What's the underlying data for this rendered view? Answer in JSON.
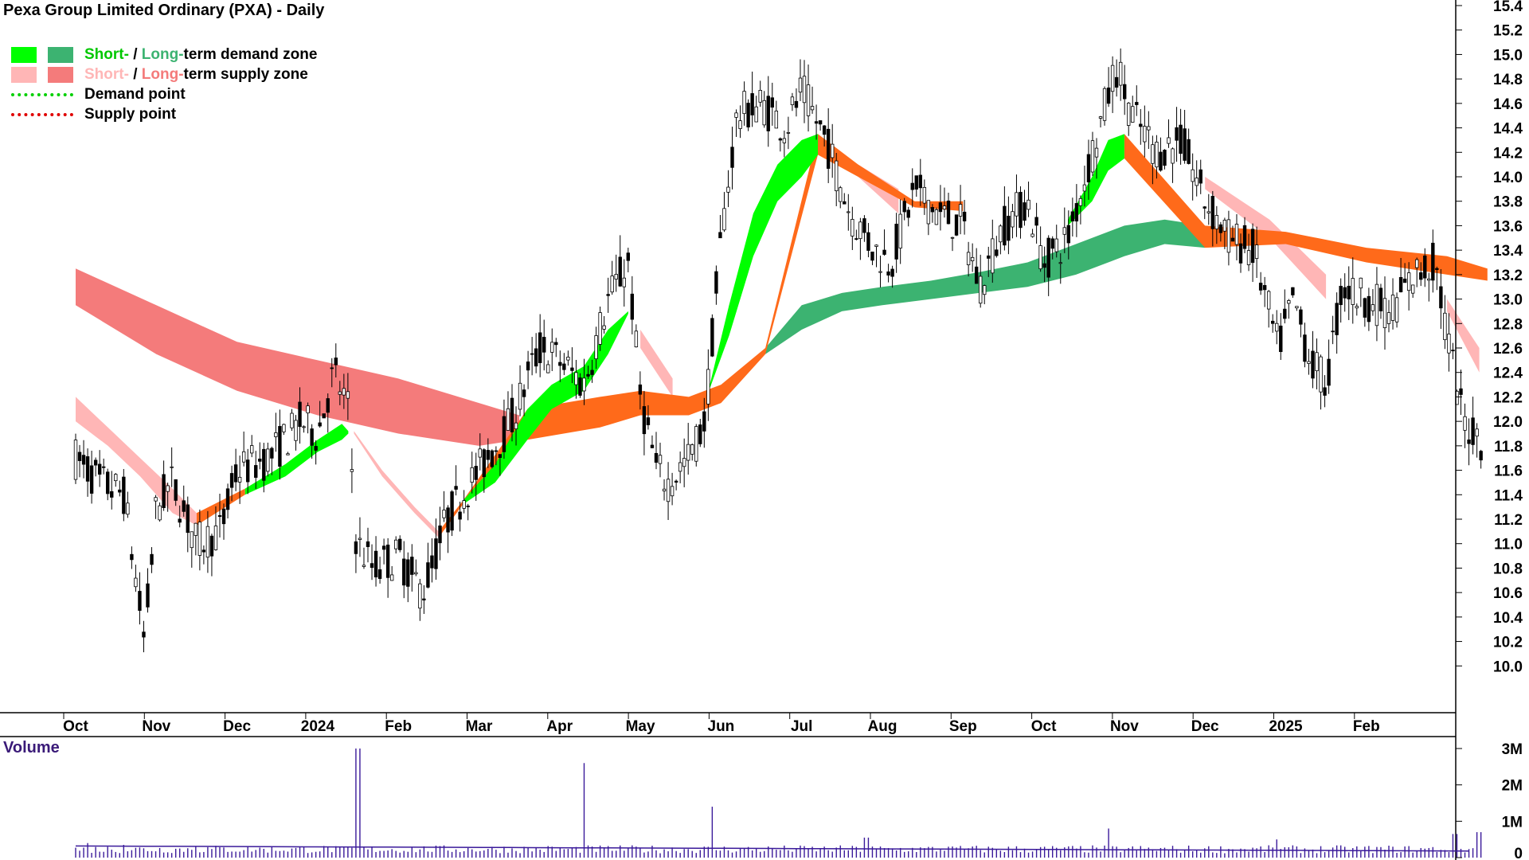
{
  "title": "Pexa Group Limited Ordinary (PXA) - Daily",
  "legend": {
    "demand": {
      "short": "Short-",
      "sep": " / ",
      "long": "Long-",
      "rest": "term demand zone"
    },
    "supply": {
      "short": "Short-",
      "sep": " / ",
      "long": "Long-",
      "rest": "term supply zone"
    },
    "demand_point": "Demand point",
    "supply_point": "Supply point"
  },
  "volume_label": "Volume",
  "colors": {
    "short_demand": "#00ff00",
    "long_demand": "#3cb371",
    "short_supply": "#ffb6b6",
    "long_supply": "#f47b7b",
    "crossover": "#ff6a1a",
    "demand_point": "#00d000",
    "supply_point": "#e00000",
    "candles": "#000000",
    "volume": "#3a1a9a"
  },
  "chart_data": {
    "type": "candlestick",
    "title": "Pexa Group Limited Ordinary (PXA) - Daily",
    "y_ticks": [
      "15.4",
      "15.2",
      "15.0",
      "14.8",
      "14.6",
      "14.4",
      "14.2",
      "14.0",
      "13.8",
      "13.6",
      "13.4",
      "13.2",
      "13.0",
      "12.8",
      "12.6",
      "12.4",
      "12.2",
      "12.0",
      "11.8",
      "11.6",
      "11.4",
      "11.2",
      "11.0",
      "10.8",
      "10.6",
      "10.4",
      "10.2",
      "10.0"
    ],
    "ylim": [
      9.8,
      15.4
    ],
    "x_ticks": [
      "Oct",
      "Nov",
      "Dec",
      "2024",
      "Feb",
      "Mar",
      "Apr",
      "May",
      "Jun",
      "Jul",
      "Aug",
      "Sep",
      "Oct",
      "Nov",
      "Dec",
      "2025",
      "Feb"
    ],
    "volume_ticks": [
      "3M",
      "2M",
      "1M",
      "0"
    ],
    "price_path": [
      {
        "m": 0.0,
        "p": 11.7
      },
      {
        "m": 0.3,
        "p": 11.5
      },
      {
        "m": 0.6,
        "p": 11.4
      },
      {
        "m": 0.85,
        "p": 10.2
      },
      {
        "m": 1.0,
        "p": 11.3
      },
      {
        "m": 1.2,
        "p": 11.5
      },
      {
        "m": 1.5,
        "p": 11.0
      },
      {
        "m": 1.8,
        "p": 11.1
      },
      {
        "m": 2.0,
        "p": 11.6
      },
      {
        "m": 2.4,
        "p": 11.7
      },
      {
        "m": 2.8,
        "p": 12.0
      },
      {
        "m": 3.0,
        "p": 11.9
      },
      {
        "m": 3.2,
        "p": 12.4
      },
      {
        "m": 3.38,
        "p": 12.1
      },
      {
        "m": 3.48,
        "p": 11.0
      },
      {
        "m": 3.7,
        "p": 10.8
      },
      {
        "m": 4.0,
        "p": 10.9
      },
      {
        "m": 4.3,
        "p": 10.6
      },
      {
        "m": 4.6,
        "p": 11.2
      },
      {
        "m": 5.0,
        "p": 11.6
      },
      {
        "m": 5.4,
        "p": 12.0
      },
      {
        "m": 5.75,
        "p": 12.6
      },
      {
        "m": 6.0,
        "p": 12.5
      },
      {
        "m": 6.3,
        "p": 12.3
      },
      {
        "m": 6.6,
        "p": 13.0
      },
      {
        "m": 6.85,
        "p": 13.3
      },
      {
        "m": 7.0,
        "p": 12.2
      },
      {
        "m": 7.2,
        "p": 11.6
      },
      {
        "m": 7.35,
        "p": 11.5
      },
      {
        "m": 7.6,
        "p": 11.7
      },
      {
        "m": 7.8,
        "p": 12.0
      },
      {
        "m": 8.0,
        "p": 13.5
      },
      {
        "m": 8.2,
        "p": 14.5
      },
      {
        "m": 8.5,
        "p": 14.6
      },
      {
        "m": 8.8,
        "p": 14.4
      },
      {
        "m": 9.0,
        "p": 14.7
      },
      {
        "m": 9.3,
        "p": 14.3
      },
      {
        "m": 9.6,
        "p": 13.7
      },
      {
        "m": 9.9,
        "p": 13.4
      },
      {
        "m": 10.1,
        "p": 13.3
      },
      {
        "m": 10.4,
        "p": 13.9
      },
      {
        "m": 10.7,
        "p": 13.7
      },
      {
        "m": 11.0,
        "p": 13.6
      },
      {
        "m": 11.2,
        "p": 13.1
      },
      {
        "m": 11.5,
        "p": 13.6
      },
      {
        "m": 11.8,
        "p": 13.8
      },
      {
        "m": 12.0,
        "p": 13.3
      },
      {
        "m": 12.3,
        "p": 13.5
      },
      {
        "m": 12.6,
        "p": 14.2
      },
      {
        "m": 12.9,
        "p": 14.9
      },
      {
        "m": 13.1,
        "p": 14.5
      },
      {
        "m": 13.4,
        "p": 14.2
      },
      {
        "m": 13.7,
        "p": 14.3
      },
      {
        "m": 14.0,
        "p": 13.8
      },
      {
        "m": 14.3,
        "p": 13.5
      },
      {
        "m": 14.6,
        "p": 13.4
      },
      {
        "m": 14.9,
        "p": 12.6
      },
      {
        "m": 15.1,
        "p": 13.0
      },
      {
        "m": 15.3,
        "p": 12.5
      },
      {
        "m": 15.5,
        "p": 12.3
      },
      {
        "m": 15.7,
        "p": 13.1
      },
      {
        "m": 16.0,
        "p": 13.0
      },
      {
        "m": 16.3,
        "p": 12.9
      },
      {
        "m": 16.6,
        "p": 13.2
      },
      {
        "m": 16.85,
        "p": 13.3
      },
      {
        "m": 17.0,
        "p": 12.7
      },
      {
        "m": 17.2,
        "p": 12.0
      },
      {
        "m": 17.5,
        "p": 11.8
      }
    ],
    "bands": {
      "short_demand_zone": {
        "path": [
          {
            "m": 2.1,
            "lo": 11.4,
            "hi": 11.45
          },
          {
            "m": 2.6,
            "lo": 11.55,
            "hi": 11.65
          },
          {
            "m": 3.0,
            "lo": 11.75,
            "hi": 11.85
          },
          {
            "m": 3.3,
            "lo": 11.85,
            "hi": 11.98
          },
          {
            "m": 3.38,
            "lo": 11.9,
            "hi": 11.92
          }
        ]
      },
      "short_demand_zone_2": {
        "path": [
          {
            "m": 4.8,
            "lo": 11.32,
            "hi": 11.35
          },
          {
            "m": 5.2,
            "lo": 11.5,
            "hi": 11.65
          },
          {
            "m": 5.6,
            "lo": 11.85,
            "hi": 12.1
          },
          {
            "m": 5.9,
            "lo": 12.1,
            "hi": 12.3
          },
          {
            "m": 6.3,
            "lo": 12.25,
            "hi": 12.45
          },
          {
            "m": 6.6,
            "lo": 12.55,
            "hi": 12.75
          },
          {
            "m": 6.85,
            "lo": 12.88,
            "hi": 12.9
          }
        ]
      },
      "short_demand_zone_3": {
        "path": [
          {
            "m": 7.85,
            "lo": 12.25,
            "hi": 12.27
          },
          {
            "m": 8.1,
            "lo": 12.7,
            "hi": 12.95
          },
          {
            "m": 8.4,
            "lo": 13.35,
            "hi": 13.7
          },
          {
            "m": 8.7,
            "lo": 13.8,
            "hi": 14.1
          },
          {
            "m": 9.0,
            "lo": 14.0,
            "hi": 14.3
          },
          {
            "m": 9.2,
            "lo": 14.18,
            "hi": 14.35
          }
        ]
      },
      "short_demand_zone_4": {
        "path": [
          {
            "m": 12.3,
            "lo": 13.6,
            "hi": 13.65
          },
          {
            "m": 12.6,
            "lo": 13.8,
            "hi": 14.0
          },
          {
            "m": 12.8,
            "lo": 14.05,
            "hi": 14.3
          },
          {
            "m": 13.0,
            "lo": 14.15,
            "hi": 14.35
          }
        ]
      },
      "long_demand_zone": {
        "path": [
          {
            "m": 8.55,
            "lo": 12.55,
            "hi": 12.6
          },
          {
            "m": 9.0,
            "lo": 12.75,
            "hi": 12.95
          },
          {
            "m": 9.5,
            "lo": 12.9,
            "hi": 13.05
          },
          {
            "m": 10.0,
            "lo": 12.95,
            "hi": 13.1
          },
          {
            "m": 10.6,
            "lo": 13.0,
            "hi": 13.15
          },
          {
            "m": 11.2,
            "lo": 13.05,
            "hi": 13.22
          },
          {
            "m": 11.8,
            "lo": 13.1,
            "hi": 13.3
          },
          {
            "m": 12.4,
            "lo": 13.2,
            "hi": 13.45
          },
          {
            "m": 13.0,
            "lo": 13.35,
            "hi": 13.6
          },
          {
            "m": 13.5,
            "lo": 13.45,
            "hi": 13.65
          },
          {
            "m": 14.0,
            "lo": 13.42,
            "hi": 13.6
          }
        ]
      },
      "short_supply_zone": {
        "path": [
          {
            "m": 0.0,
            "lo": 12.0,
            "hi": 12.2
          },
          {
            "m": 0.4,
            "lo": 11.8,
            "hi": 11.95
          },
          {
            "m": 0.8,
            "lo": 11.55,
            "hi": 11.7
          },
          {
            "m": 1.2,
            "lo": 11.25,
            "hi": 11.45
          },
          {
            "m": 1.5,
            "lo": 11.15,
            "hi": 11.25
          },
          {
            "m": 3.45,
            "lo": 11.9,
            "hi": 11.92
          },
          {
            "m": 3.8,
            "lo": 11.55,
            "hi": 11.6
          },
          {
            "m": 4.2,
            "lo": 11.25,
            "hi": 11.3
          },
          {
            "m": 4.5,
            "lo": 11.05,
            "hi": 11.1
          },
          {
            "m": 7.0,
            "lo": 12.6,
            "hi": 12.75
          },
          {
            "m": 7.4,
            "lo": 12.2,
            "hi": 12.35
          },
          {
            "m": 9.7,
            "lo": 14.0,
            "hi": 14.1
          },
          {
            "m": 10.2,
            "lo": 13.7,
            "hi": 13.9
          },
          {
            "m": 14.0,
            "lo": 13.9,
            "hi": 14.0
          },
          {
            "m": 14.8,
            "lo": 13.5,
            "hi": 13.65
          },
          {
            "m": 15.5,
            "lo": 13.0,
            "hi": 13.2
          },
          {
            "m": 17.0,
            "lo": 12.9,
            "hi": 13.0
          },
          {
            "m": 17.4,
            "lo": 12.4,
            "hi": 12.6
          }
        ]
      },
      "long_supply_zone": {
        "path": [
          {
            "m": 0.0,
            "lo": 12.95,
            "hi": 13.25
          },
          {
            "m": 1.0,
            "lo": 12.55,
            "hi": 12.95
          },
          {
            "m": 2.0,
            "lo": 12.25,
            "hi": 12.65
          },
          {
            "m": 3.0,
            "lo": 12.05,
            "hi": 12.5
          },
          {
            "m": 4.0,
            "lo": 11.9,
            "hi": 12.35
          },
          {
            "m": 5.0,
            "lo": 11.8,
            "hi": 12.15
          },
          {
            "m": 5.5,
            "lo": 11.85,
            "hi": 12.05
          }
        ]
      },
      "crossover_zone": {
        "path": [
          {
            "m": 1.5,
            "lo": 11.15,
            "hi": 11.25
          },
          {
            "m": 2.1,
            "lo": 11.4,
            "hi": 11.45
          },
          {
            "m": 4.5,
            "lo": 11.05,
            "hi": 11.1
          },
          {
            "m": 4.8,
            "lo": 11.32,
            "hi": 11.35
          },
          {
            "m": 5.6,
            "lo": 11.85,
            "hi": 12.1
          },
          {
            "m": 6.5,
            "lo": 11.95,
            "hi": 12.2
          },
          {
            "m": 7.0,
            "lo": 12.05,
            "hi": 12.25
          },
          {
            "m": 7.6,
            "lo": 12.05,
            "hi": 12.2
          },
          {
            "m": 8.0,
            "lo": 12.15,
            "hi": 12.3
          },
          {
            "m": 8.55,
            "lo": 12.55,
            "hi": 12.6
          },
          {
            "m": 9.2,
            "lo": 14.18,
            "hi": 14.35
          },
          {
            "m": 9.7,
            "lo": 14.0,
            "hi": 14.1
          },
          {
            "m": 10.4,
            "lo": 13.75,
            "hi": 13.8
          },
          {
            "m": 11.0,
            "lo": 13.72,
            "hi": 13.8
          },
          {
            "m": 13.0,
            "lo": 14.15,
            "hi": 14.35
          },
          {
            "m": 14.0,
            "lo": 13.42,
            "hi": 13.6
          },
          {
            "m": 15.0,
            "lo": 13.45,
            "hi": 13.55
          },
          {
            "m": 16.0,
            "lo": 13.3,
            "hi": 13.42
          },
          {
            "m": 17.0,
            "lo": 13.2,
            "hi": 13.35
          },
          {
            "m": 17.5,
            "lo": 13.15,
            "hi": 13.25
          }
        ]
      }
    },
    "volume_max": 3.0,
    "volume_spikes": [
      {
        "m": 0.15,
        "v": 0.4
      },
      {
        "m": 0.6,
        "v": 0.35
      },
      {
        "m": 1.5,
        "v": 0.3
      },
      {
        "m": 3.3,
        "v": 0.3
      },
      {
        "m": 3.5,
        "v": 3.0
      },
      {
        "m": 5.3,
        "v": 0.3
      },
      {
        "m": 6.3,
        "v": 2.6
      },
      {
        "m": 7.9,
        "v": 1.4
      },
      {
        "m": 9.8,
        "v": 0.55
      },
      {
        "m": 10.8,
        "v": 0.3
      },
      {
        "m": 12.8,
        "v": 0.8
      },
      {
        "m": 14.9,
        "v": 0.5
      },
      {
        "m": 17.1,
        "v": 0.65
      },
      {
        "m": 17.4,
        "v": 0.7
      }
    ]
  }
}
